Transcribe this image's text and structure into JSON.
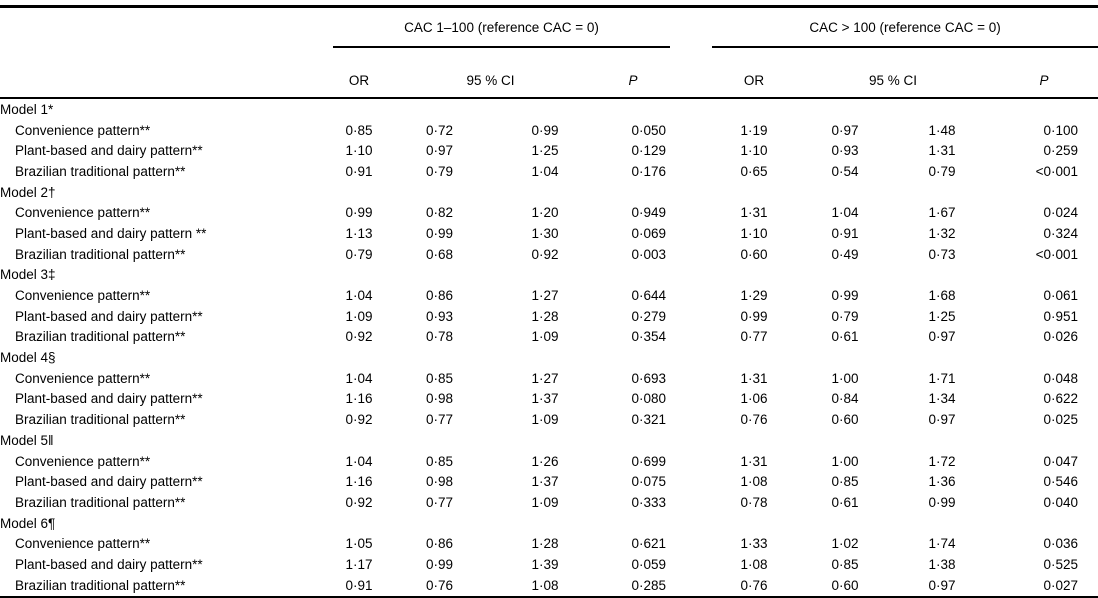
{
  "table": {
    "column_groups": [
      {
        "title": "CAC 1–100 (reference CAC = 0)"
      },
      {
        "title": "CAC > 100 (reference CAC = 0)"
      }
    ],
    "sub_headers": {
      "or": "OR",
      "ci": "95 % CI",
      "p": "P"
    },
    "sections": [
      {
        "label": "Model 1*",
        "rows": [
          {
            "label": "Convenience pattern**",
            "cac_1_100": [
              "0·85",
              "0·72",
              "0·99",
              "0·050"
            ],
            "cac_over_100": [
              "1·19",
              "0·97",
              "1·48",
              "0·100"
            ]
          },
          {
            "label": "Plant-based and dairy pattern**",
            "cac_1_100": [
              "1·10",
              "0·97",
              "1·25",
              "0·129"
            ],
            "cac_over_100": [
              "1·10",
              "0·93",
              "1·31",
              "0·259"
            ]
          },
          {
            "label": "Brazilian traditional pattern**",
            "cac_1_100": [
              "0·91",
              "0·79",
              "1·04",
              "0·176"
            ],
            "cac_over_100": [
              "0·65",
              "0·54",
              "0·79",
              "<0·001"
            ]
          }
        ]
      },
      {
        "label": "Model 2†",
        "rows": [
          {
            "label": "Convenience pattern**",
            "cac_1_100": [
              "0·99",
              "0·82",
              "1·20",
              "0·949"
            ],
            "cac_over_100": [
              "1·31",
              "1·04",
              "1·67",
              "0·024"
            ]
          },
          {
            "label": "Plant-based and dairy pattern **",
            "cac_1_100": [
              "1·13",
              "0·99",
              "1·30",
              "0·069"
            ],
            "cac_over_100": [
              "1·10",
              "0·91",
              "1·32",
              "0·324"
            ]
          },
          {
            "label": "Brazilian traditional pattern**",
            "cac_1_100": [
              "0·79",
              "0·68",
              "0·92",
              "0·003"
            ],
            "cac_over_100": [
              "0·60",
              "0·49",
              "0·73",
              "<0·001"
            ]
          }
        ]
      },
      {
        "label": "Model 3‡",
        "rows": [
          {
            "label": "Convenience pattern**",
            "cac_1_100": [
              "1·04",
              "0·86",
              "1·27",
              "0·644"
            ],
            "cac_over_100": [
              "1·29",
              "0·99",
              "1·68",
              "0·061"
            ]
          },
          {
            "label": "Plant-based and dairy pattern**",
            "cac_1_100": [
              "1·09",
              "0·93",
              "1·28",
              "0·279"
            ],
            "cac_over_100": [
              "0·99",
              "0·79",
              "1·25",
              "0·951"
            ]
          },
          {
            "label": "Brazilian traditional pattern**",
            "cac_1_100": [
              "0·92",
              "0·78",
              "1·09",
              "0·354"
            ],
            "cac_over_100": [
              "0·77",
              "0·61",
              "0·97",
              "0·026"
            ]
          }
        ]
      },
      {
        "label": "Model 4§",
        "rows": [
          {
            "label": "Convenience pattern**",
            "cac_1_100": [
              "1·04",
              "0·85",
              "1·27",
              "0·693"
            ],
            "cac_over_100": [
              "1·31",
              "1·00",
              "1·71",
              "0·048"
            ]
          },
          {
            "label": "Plant-based and dairy pattern**",
            "cac_1_100": [
              "1·16",
              "0·98",
              "1·37",
              "0·080"
            ],
            "cac_over_100": [
              "1·06",
              "0·84",
              "1·34",
              "0·622"
            ]
          },
          {
            "label": "Brazilian traditional pattern**",
            "cac_1_100": [
              "0·92",
              "0·77",
              "1·09",
              "0·321"
            ],
            "cac_over_100": [
              "0·76",
              "0·60",
              "0·97",
              "0·025"
            ]
          }
        ]
      },
      {
        "label": "Model 5‖",
        "rows": [
          {
            "label": "Convenience pattern**",
            "cac_1_100": [
              "1·04",
              "0·85",
              "1·26",
              "0·699"
            ],
            "cac_over_100": [
              "1·31",
              "1·00",
              "1·72",
              "0·047"
            ]
          },
          {
            "label": "Plant-based and dairy pattern**",
            "cac_1_100": [
              "1·16",
              "0·98",
              "1·37",
              "0·075"
            ],
            "cac_over_100": [
              "1·08",
              "0·85",
              "1·36",
              "0·546"
            ]
          },
          {
            "label": "Brazilian traditional pattern**",
            "cac_1_100": [
              "0·92",
              "0·77",
              "1·09",
              "0·333"
            ],
            "cac_over_100": [
              "0·78",
              "0·61",
              "0·99",
              "0·040"
            ]
          }
        ]
      },
      {
        "label": "Model 6¶",
        "rows": [
          {
            "label": "Convenience pattern**",
            "cac_1_100": [
              "1·05",
              "0·86",
              "1·28",
              "0·621"
            ],
            "cac_over_100": [
              "1·33",
              "1·02",
              "1·74",
              "0·036"
            ]
          },
          {
            "label": "Plant-based and dairy pattern**",
            "cac_1_100": [
              "1·17",
              "0·99",
              "1·39",
              "0·059"
            ],
            "cac_over_100": [
              "1·08",
              "0·85",
              "1·38",
              "0·525"
            ]
          },
          {
            "label": "Brazilian traditional pattern**",
            "cac_1_100": [
              "0·91",
              "0·76",
              "1·08",
              "0·285"
            ],
            "cac_over_100": [
              "0·76",
              "0·60",
              "0·97",
              "0·027"
            ]
          }
        ]
      }
    ]
  }
}
